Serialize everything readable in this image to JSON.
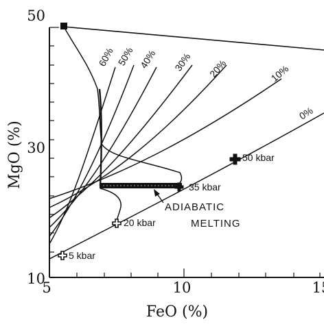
{
  "axes": {
    "x_label": "FeO (%)",
    "y_label": "MgO (%)",
    "x_ticks": [
      "5",
      "10",
      "15"
    ],
    "y_ticks": [
      "50",
      "30",
      "10"
    ],
    "x_range": [
      5,
      15
    ],
    "y_range": [
      10,
      50
    ]
  },
  "melt_labels": [
    "60%",
    "50%",
    "40%",
    "30%",
    "20%",
    "10%",
    "0%"
  ],
  "pressure_labels": {
    "p5": "5 kbar",
    "p20": "20 kbar",
    "p35": "35 kbar",
    "p50": "50 kbar"
  },
  "annotation": {
    "line1": "ADIABATIC",
    "line2": "MELTING"
  },
  "colors": {
    "ink": "#111111",
    "background": "#ffffff"
  }
}
